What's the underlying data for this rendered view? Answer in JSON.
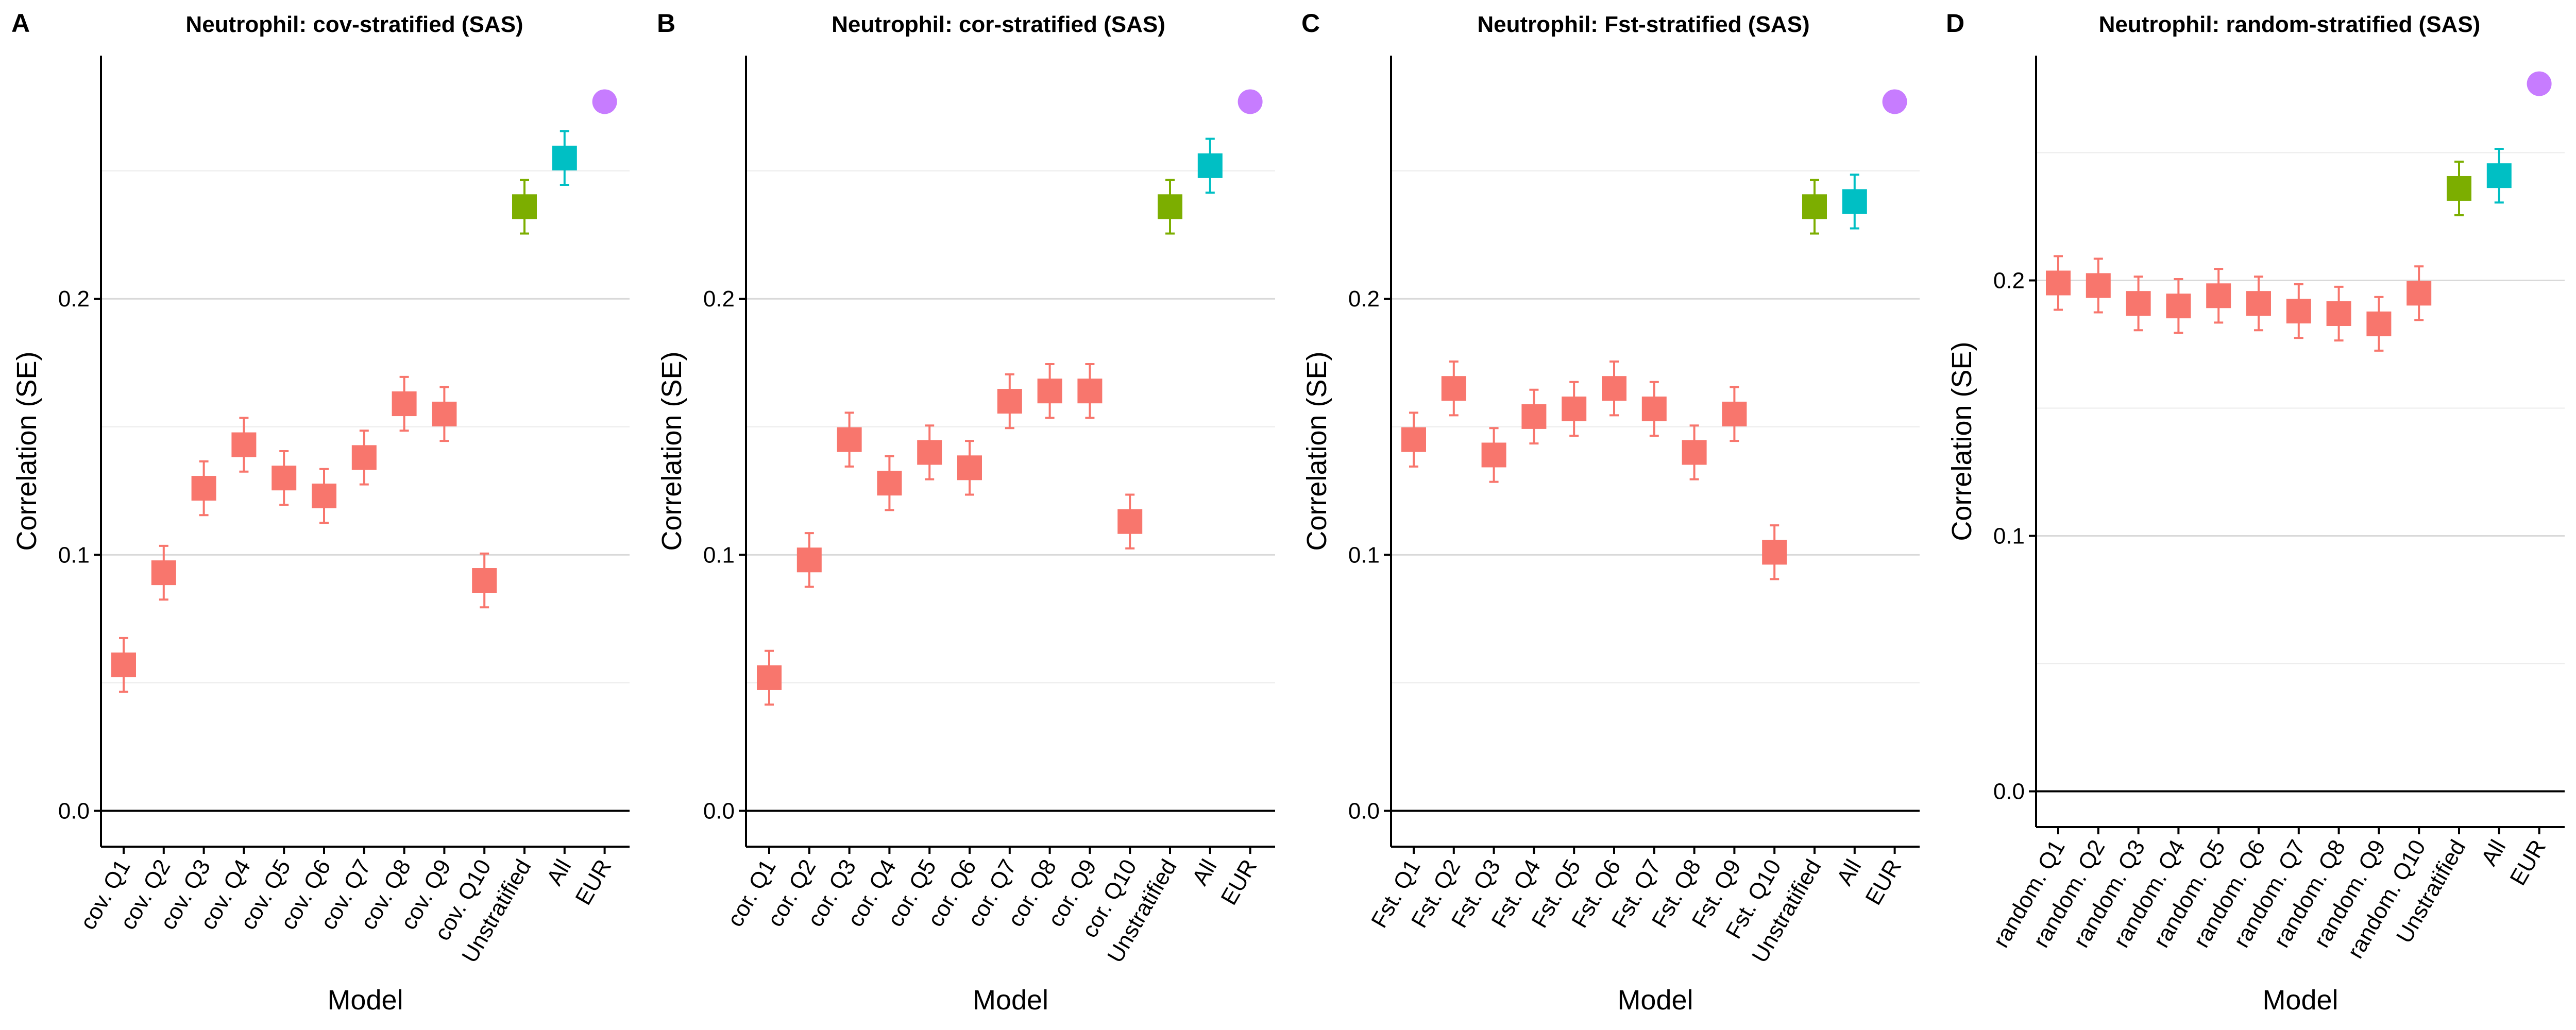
{
  "colors": {
    "stratified": "#F8766D",
    "unstratified": "#7CAE00",
    "all": "#00BFC4",
    "eur": "#C77CFF"
  },
  "chart_data": [
    {
      "panel": "A",
      "type": "scatter",
      "title": "Neutrophil: cov-stratified (SAS)",
      "xlabel": "Model",
      "ylabel": "Correlation (SE)",
      "ylim": [
        -0.014,
        0.295
      ],
      "yticks": [
        0.0,
        0.1,
        0.2
      ],
      "ytick_labels": [
        "0.0",
        "0.1",
        "0.2"
      ],
      "minor_grid": [
        0.05,
        0.15,
        0.25
      ],
      "categories": [
        "cov. Q1",
        "cov. Q2",
        "cov. Q3",
        "cov. Q4",
        "cov. Q5",
        "cov. Q6",
        "cov. Q7",
        "cov. Q8",
        "cov. Q9",
        "cov. Q10",
        "Unstratified",
        "All",
        "EUR"
      ],
      "groups": [
        "stratified",
        "stratified",
        "stratified",
        "stratified",
        "stratified",
        "stratified",
        "stratified",
        "stratified",
        "stratified",
        "stratified",
        "unstratified",
        "all",
        "eur"
      ],
      "values": [
        0.057,
        0.093,
        0.126,
        0.143,
        0.13,
        0.123,
        0.138,
        0.159,
        0.155,
        0.09,
        0.236,
        0.255,
        0.277
      ],
      "se": [
        0.0105,
        0.0105,
        0.0105,
        0.0105,
        0.0105,
        0.0105,
        0.0105,
        0.0105,
        0.0105,
        0.0105,
        0.0105,
        0.0105,
        null
      ]
    },
    {
      "panel": "B",
      "type": "scatter",
      "title": "Neutrophil: cor-stratified (SAS)",
      "xlabel": "Model",
      "ylabel": "Correlation (SE)",
      "ylim": [
        -0.014,
        0.295
      ],
      "yticks": [
        0.0,
        0.1,
        0.2
      ],
      "ytick_labels": [
        "0.0",
        "0.1",
        "0.2"
      ],
      "minor_grid": [
        0.05,
        0.15,
        0.25
      ],
      "categories": [
        "cor. Q1",
        "cor. Q2",
        "cor. Q3",
        "cor. Q4",
        "cor. Q5",
        "cor. Q6",
        "cor. Q7",
        "cor. Q8",
        "cor. Q9",
        "cor. Q10",
        "Unstratified",
        "All",
        "EUR"
      ],
      "groups": [
        "stratified",
        "stratified",
        "stratified",
        "stratified",
        "stratified",
        "stratified",
        "stratified",
        "stratified",
        "stratified",
        "stratified",
        "unstratified",
        "all",
        "eur"
      ],
      "values": [
        0.052,
        0.098,
        0.145,
        0.128,
        0.14,
        0.134,
        0.16,
        0.164,
        0.164,
        0.113,
        0.236,
        0.252,
        0.277
      ],
      "se": [
        0.0105,
        0.0105,
        0.0105,
        0.0105,
        0.0105,
        0.0105,
        0.0105,
        0.0105,
        0.0105,
        0.0105,
        0.0105,
        0.0105,
        null
      ]
    },
    {
      "panel": "C",
      "type": "scatter",
      "title": "Neutrophil: Fst-stratified (SAS)",
      "xlabel": "Model",
      "ylabel": "Correlation (SE)",
      "ylim": [
        -0.014,
        0.295
      ],
      "yticks": [
        0.0,
        0.1,
        0.2
      ],
      "ytick_labels": [
        "0.0",
        "0.1",
        "0.2"
      ],
      "minor_grid": [
        0.05,
        0.15,
        0.25
      ],
      "categories": [
        "Fst. Q1",
        "Fst. Q2",
        "Fst. Q3",
        "Fst. Q4",
        "Fst. Q5",
        "Fst. Q6",
        "Fst. Q7",
        "Fst. Q8",
        "Fst. Q9",
        "Fst. Q10",
        "Unstratified",
        "All",
        "EUR"
      ],
      "groups": [
        "stratified",
        "stratified",
        "stratified",
        "stratified",
        "stratified",
        "stratified",
        "stratified",
        "stratified",
        "stratified",
        "stratified",
        "unstratified",
        "all",
        "eur"
      ],
      "values": [
        0.145,
        0.165,
        0.139,
        0.154,
        0.157,
        0.165,
        0.157,
        0.14,
        0.155,
        0.101,
        0.236,
        0.238,
        0.277
      ],
      "se": [
        0.0105,
        0.0105,
        0.0105,
        0.0105,
        0.0105,
        0.0105,
        0.0105,
        0.0105,
        0.0105,
        0.0105,
        0.0105,
        0.0105,
        null
      ]
    },
    {
      "panel": "D",
      "type": "scatter",
      "title": "Neutrophil: random-stratified (SAS)",
      "xlabel": "Model",
      "ylabel": "Correlation (SE)",
      "ylim": [
        -0.014,
        0.288
      ],
      "yticks": [
        0.0,
        0.1,
        0.2
      ],
      "ytick_labels": [
        "0.0",
        "0.1",
        "0.2"
      ],
      "minor_grid": [
        0.05,
        0.15,
        0.25
      ],
      "categories": [
        "random. Q1",
        "random. Q2",
        "random. Q3",
        "random. Q4",
        "random. Q5",
        "random. Q6",
        "random. Q7",
        "random. Q8",
        "random. Q9",
        "random. Q10",
        "Unstratified",
        "All",
        "EUR"
      ],
      "groups": [
        "stratified",
        "stratified",
        "stratified",
        "stratified",
        "stratified",
        "stratified",
        "stratified",
        "stratified",
        "stratified",
        "stratified",
        "unstratified",
        "all",
        "eur"
      ],
      "values": [
        0.199,
        0.198,
        0.191,
        0.19,
        0.194,
        0.191,
        0.188,
        0.187,
        0.183,
        0.195,
        0.236,
        0.241,
        0.277
      ],
      "se": [
        0.0105,
        0.0105,
        0.0105,
        0.0105,
        0.0105,
        0.0105,
        0.0105,
        0.0105,
        0.0105,
        0.0105,
        0.0105,
        0.0105,
        null
      ]
    }
  ]
}
